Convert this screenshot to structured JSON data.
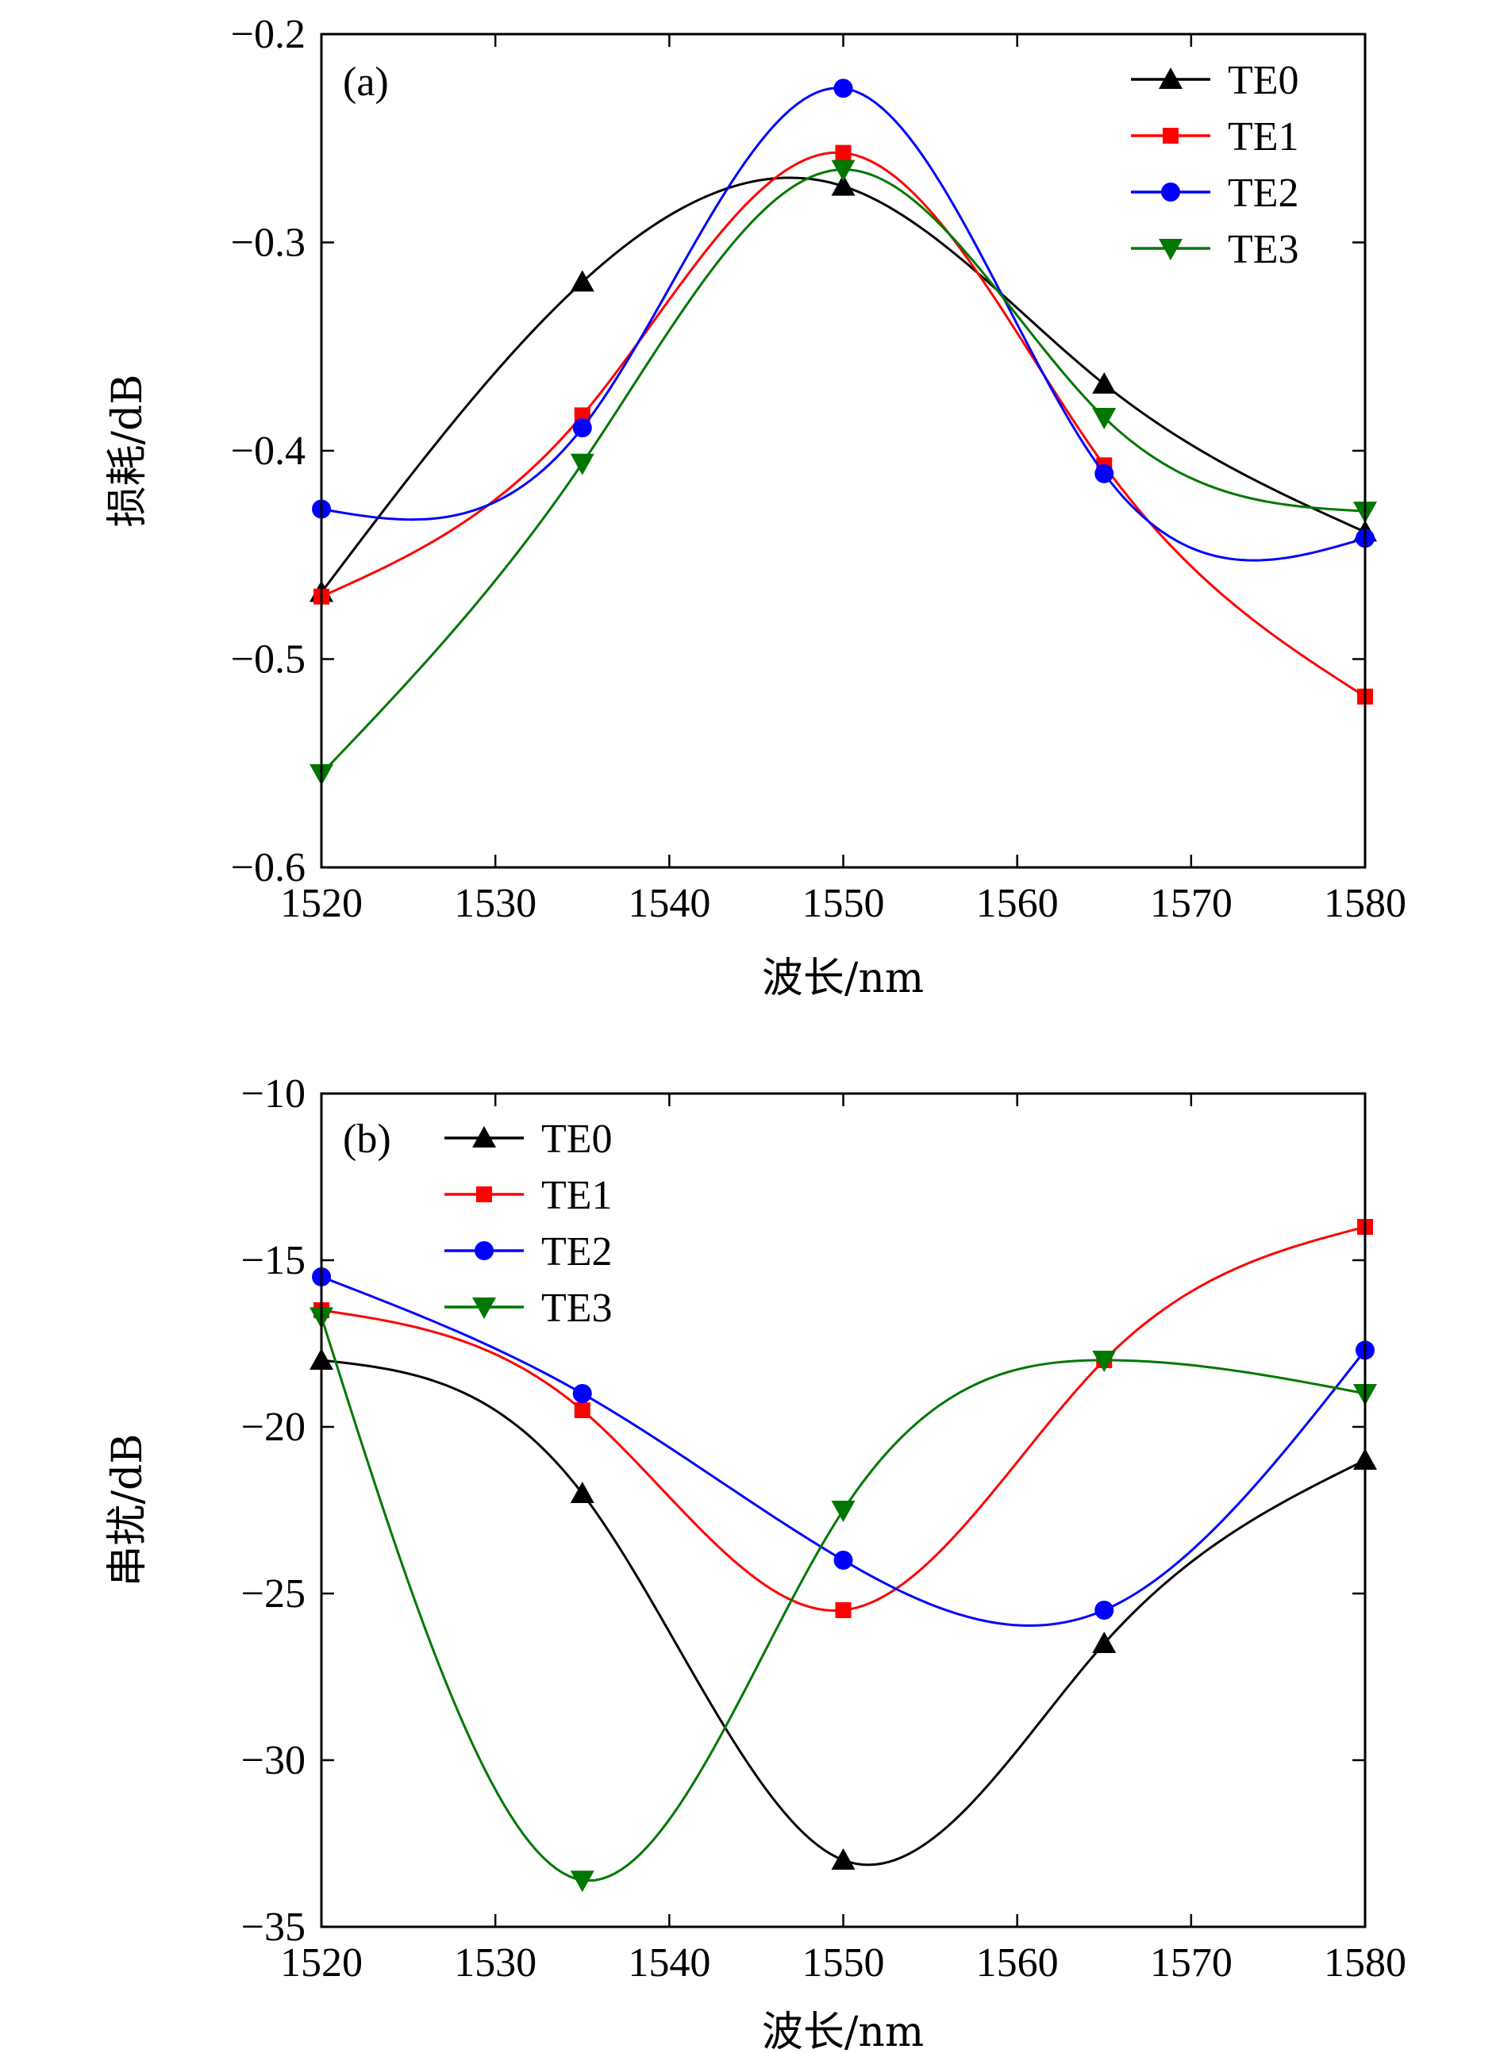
{
  "chart_data": [
    {
      "type": "line",
      "panel_label": "(a)",
      "xlabel": "波长/nm",
      "ylabel": "损耗/dB",
      "xlim": [
        1520,
        1580
      ],
      "ylim": [
        -0.6,
        -0.2
      ],
      "xticks": [
        1520,
        1530,
        1540,
        1550,
        1560,
        1570,
        1580
      ],
      "xtick_labels": [
        "1520",
        "1530",
        "1540",
        "1550",
        "1560",
        "1570",
        "1580"
      ],
      "yticks": [
        -0.6,
        -0.5,
        -0.4,
        -0.3,
        -0.2
      ],
      "ytick_labels": [
        "−0.6",
        "−0.5",
        "−0.4",
        "−0.3",
        "−0.2"
      ],
      "legend_position": "top-right",
      "x": [
        1520,
        1535,
        1550,
        1565,
        1580
      ],
      "series": [
        {
          "name": "TE0",
          "color": "#000000",
          "marker": "triangle-up",
          "values": [
            -0.468,
            -0.319,
            -0.273,
            -0.368,
            -0.439
          ]
        },
        {
          "name": "TE1",
          "color": "#ff0000",
          "marker": "square",
          "values": [
            -0.47,
            -0.383,
            -0.257,
            -0.407,
            -0.518
          ]
        },
        {
          "name": "TE2",
          "color": "#0000ff",
          "marker": "circle",
          "values": [
            -0.428,
            -0.389,
            -0.226,
            -0.411,
            -0.442
          ]
        },
        {
          "name": "TE3",
          "color": "#007700",
          "marker": "triangle-down",
          "values": [
            -0.555,
            -0.406,
            -0.265,
            -0.384,
            -0.429
          ]
        }
      ]
    },
    {
      "type": "line",
      "panel_label": "(b)",
      "xlabel": "波长/nm",
      "ylabel": "串扰/dB",
      "xlim": [
        1520,
        1580
      ],
      "ylim": [
        -35,
        -10
      ],
      "xticks": [
        1520,
        1530,
        1540,
        1550,
        1560,
        1570,
        1580
      ],
      "xtick_labels": [
        "1520",
        "1530",
        "1540",
        "1550",
        "1560",
        "1570",
        "1580"
      ],
      "yticks": [
        -35,
        -30,
        -25,
        -20,
        -15,
        -10
      ],
      "ytick_labels": [
        "−35",
        "−30",
        "−25",
        "−20",
        "−15",
        "−10"
      ],
      "legend_position": "top-left",
      "x": [
        1520,
        1535,
        1550,
        1565,
        1580
      ],
      "series": [
        {
          "name": "TE0",
          "color": "#000000",
          "marker": "triangle-up",
          "values": [
            -18.0,
            -22.0,
            -33.0,
            -26.5,
            -21.0
          ]
        },
        {
          "name": "TE1",
          "color": "#ff0000",
          "marker": "square",
          "values": [
            -16.5,
            -19.5,
            -25.5,
            -18.0,
            -14.0
          ]
        },
        {
          "name": "TE2",
          "color": "#0000ff",
          "marker": "circle",
          "values": [
            -15.5,
            -19.0,
            -24.0,
            -25.5,
            -17.7
          ]
        },
        {
          "name": "TE3",
          "color": "#007700",
          "marker": "triangle-down",
          "values": [
            -16.7,
            -33.6,
            -22.5,
            -18.0,
            -19.0
          ]
        }
      ]
    }
  ]
}
